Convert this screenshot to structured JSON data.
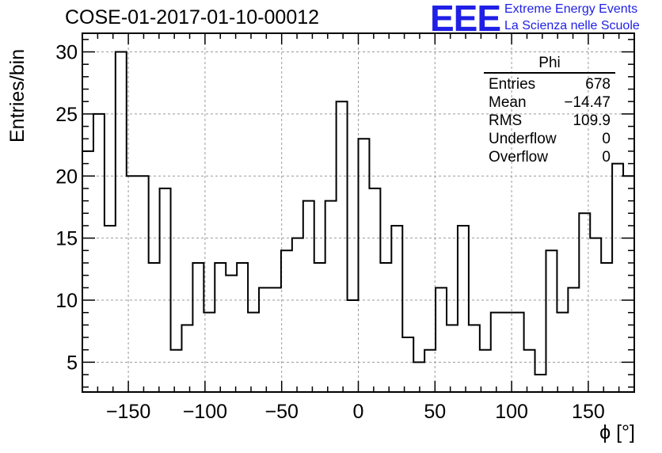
{
  "title": "COSE-01-2017-01-10-00012",
  "logo": {
    "text": "EEE",
    "line1": "Extreme Energy Events",
    "line2": "La Scienza nelle Scuole",
    "color": "#1f1fe6"
  },
  "chart_data": {
    "type": "histogram",
    "xlabel": "ϕ [°]",
    "ylabel": "Entries/bin",
    "xlim": [
      -180,
      180
    ],
    "ylim": [
      2.6,
      31.5
    ],
    "bin_width": 7.2,
    "bin_edges_start": -180,
    "values": [
      22,
      25,
      16,
      30,
      20,
      20,
      13,
      19,
      6,
      8,
      13,
      9,
      13,
      12,
      13,
      9,
      11,
      11,
      14,
      15,
      18,
      13,
      18,
      26,
      10,
      23,
      19,
      13,
      16,
      7,
      5,
      6,
      11,
      8,
      16,
      8,
      6,
      9,
      9,
      9,
      6,
      4,
      14,
      9,
      11,
      17,
      15,
      13,
      21,
      20
    ],
    "xticks": [
      -150,
      -100,
      -50,
      0,
      50,
      100,
      150
    ],
    "xtick_labels": [
      "−150",
      "−100",
      "−50",
      "0",
      "50",
      "100",
      "150"
    ],
    "yticks": [
      5,
      10,
      15,
      20,
      25,
      30
    ],
    "ytick_labels": [
      "5",
      "10",
      "15",
      "20",
      "25",
      "30"
    ],
    "grid": true,
    "line_color": "#000000",
    "grid_color": "#9a9a9a"
  },
  "stats": {
    "name": "Phi",
    "rows": [
      {
        "label": "Entries",
        "value": "678"
      },
      {
        "label": "Mean",
        "value": "−14.47"
      },
      {
        "label": "RMS",
        "value": "109.9"
      },
      {
        "label": "Underflow",
        "value": "0"
      },
      {
        "label": "Overflow",
        "value": "0"
      }
    ]
  }
}
